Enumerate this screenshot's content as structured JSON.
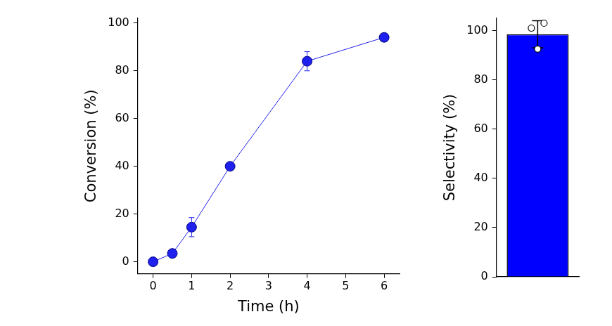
{
  "chart_data": [
    {
      "type": "line",
      "x": [
        0,
        0.5,
        1,
        2,
        4,
        6
      ],
      "values": [
        0,
        3.5,
        14.5,
        40,
        84,
        94
      ],
      "errors": [
        0.5,
        1.5,
        4,
        1,
        4,
        1
      ],
      "x_label": "Time (h)",
      "y_label": "Conversion (%)",
      "xlim": [
        -0.4,
        6.4
      ],
      "xticks": [
        0,
        1,
        2,
        3,
        4,
        5,
        6
      ],
      "ylim": [
        -5,
        102
      ],
      "yticks": [
        0,
        20,
        40,
        60,
        80,
        100
      ],
      "color": "#2020ee",
      "marker": "circle",
      "grid": false
    },
    {
      "type": "bar",
      "categories": [
        null
      ],
      "values": [
        98.5
      ],
      "errors": [
        5.5
      ],
      "points": [
        101,
        92.5,
        103
      ],
      "y_label": "Selectivity (%)",
      "ylim": [
        0,
        105
      ],
      "yticks": [
        0,
        20,
        40,
        60,
        80,
        100
      ],
      "color": "#0000ff",
      "grid": false,
      "tick_labels": "y"
    }
  ]
}
